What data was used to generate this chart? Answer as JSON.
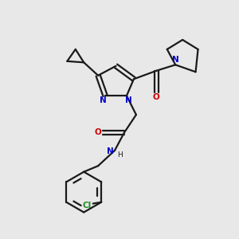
{
  "background_color": "#e8e8e8",
  "bond_color": "#1a1a1a",
  "N_color": "#0000cc",
  "O_color": "#cc0000",
  "Cl_color": "#228B22",
  "line_width": 1.6,
  "figsize": [
    3.0,
    3.0
  ],
  "dpi": 100,
  "xlim": [
    0,
    10
  ],
  "ylim": [
    0,
    10
  ]
}
